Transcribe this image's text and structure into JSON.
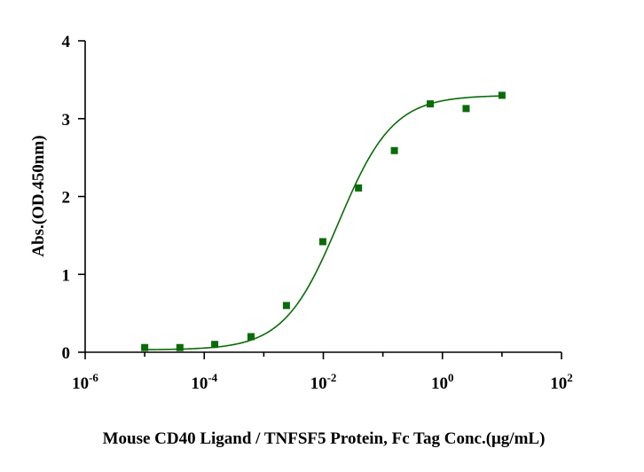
{
  "chart_data": {
    "type": "scatter",
    "title": "",
    "xlabel": "Mouse CD40 Ligand / TNFSF5 Protein, Fc Tag Conc.(μg/mL)",
    "ylabel": "Abs.(OD.450nm)",
    "xscale": "log",
    "xlim": [
      1e-06,
      100
    ],
    "ylim": [
      0,
      4
    ],
    "x_tick_labels": [
      {
        "base": "10",
        "exp": "-6"
      },
      {
        "base": "10",
        "exp": "-4"
      },
      {
        "base": "10",
        "exp": "-2"
      },
      {
        "base": "10",
        "exp": "0"
      },
      {
        "base": "10",
        "exp": "2"
      }
    ],
    "y_tick_labels": [
      "0",
      "1",
      "2",
      "3",
      "4"
    ],
    "grid": false,
    "legend": "none",
    "series": [
      {
        "marker": "square",
        "color": "#0a6b0a",
        "points": [
          {
            "x": 1e-05,
            "y": 0.06
          },
          {
            "x": 3.9e-05,
            "y": 0.06
          },
          {
            "x": 0.00015,
            "y": 0.1
          },
          {
            "x": 0.00061,
            "y": 0.2
          },
          {
            "x": 0.0024,
            "y": 0.6
          },
          {
            "x": 0.0098,
            "y": 1.42
          },
          {
            "x": 0.039,
            "y": 2.11
          },
          {
            "x": 0.156,
            "y": 2.59
          },
          {
            "x": 0.625,
            "y": 3.19
          },
          {
            "x": 2.5,
            "y": 3.13
          },
          {
            "x": 10,
            "y": 3.3
          }
        ]
      }
    ],
    "fit_curve": {
      "model": "4PL",
      "color": "#0a6b0a",
      "bottom": 0.03,
      "top": 3.3,
      "ec50": 0.018,
      "hill": 0.95
    }
  }
}
